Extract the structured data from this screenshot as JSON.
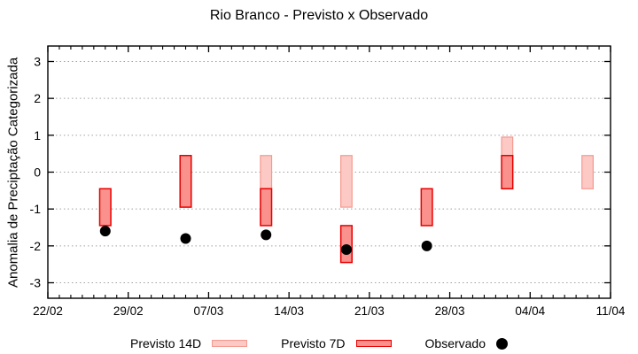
{
  "chart_data": {
    "type": "bar",
    "subtype": "floating-range-bars-with-scatter",
    "title": "Rio Branco - Previsto x Observado",
    "xlabel": "",
    "ylabel": "Anomalia de Preciptação Categorizada",
    "ylim": [
      -3.42,
      3.42
    ],
    "yticks": [
      3,
      2,
      1,
      0,
      -1,
      -2,
      -3
    ],
    "x_total_days": 49,
    "xticks": [
      {
        "day": 0,
        "label": "22/02"
      },
      {
        "day": 7,
        "label": "29/02"
      },
      {
        "day": 14,
        "label": "07/03"
      },
      {
        "day": 21,
        "label": "14/03"
      },
      {
        "day": 28,
        "label": "21/03"
      },
      {
        "day": 35,
        "label": "28/03"
      },
      {
        "day": 42,
        "label": "04/04"
      },
      {
        "day": 49,
        "label": "11/04"
      }
    ],
    "x_minor_tick_every_days": 1,
    "grid": "horizontal-dotted",
    "grid_color": "#a0a0a0",
    "legend_position": "bottom-center",
    "series": [
      {
        "name": "Previsto 14D",
        "type": "range_bar",
        "fill": "#fcc9c4",
        "border": "#f5998f",
        "points": [
          {
            "date": "12/03",
            "day": 19,
            "low": -0.45,
            "high": 0.45
          },
          {
            "date": "19/03",
            "day": 26,
            "low": -0.95,
            "high": 0.45
          },
          {
            "date": "02/04",
            "day": 40,
            "low": -0.45,
            "high": 0.95
          },
          {
            "date": "09/04",
            "day": 47,
            "low": -0.45,
            "high": 0.45
          }
        ]
      },
      {
        "name": "Previsto 7D",
        "type": "range_bar",
        "fill": "#fa918c",
        "border": "#e80000",
        "points": [
          {
            "date": "27/02",
            "day": 5,
            "low": -1.45,
            "high": -0.45
          },
          {
            "date": "05/03",
            "day": 12,
            "low": -0.95,
            "high": 0.45
          },
          {
            "date": "12/03",
            "day": 19,
            "low": -1.45,
            "high": -0.45
          },
          {
            "date": "19/03",
            "day": 26,
            "low": -2.45,
            "high": -1.45
          },
          {
            "date": "26/03",
            "day": 33,
            "low": -1.45,
            "high": -0.45
          },
          {
            "date": "02/04",
            "day": 40,
            "low": -0.45,
            "high": 0.45
          }
        ]
      },
      {
        "name": "Observado",
        "type": "scatter",
        "color": "#000000",
        "points": [
          {
            "date": "27/02",
            "day": 5,
            "value": -1.6
          },
          {
            "date": "05/03",
            "day": 12,
            "value": -1.8
          },
          {
            "date": "12/03",
            "day": 19,
            "value": -1.7
          },
          {
            "date": "19/03",
            "day": 26,
            "value": -2.1
          },
          {
            "date": "26/03",
            "day": 33,
            "value": -2.0
          }
        ]
      }
    ]
  }
}
